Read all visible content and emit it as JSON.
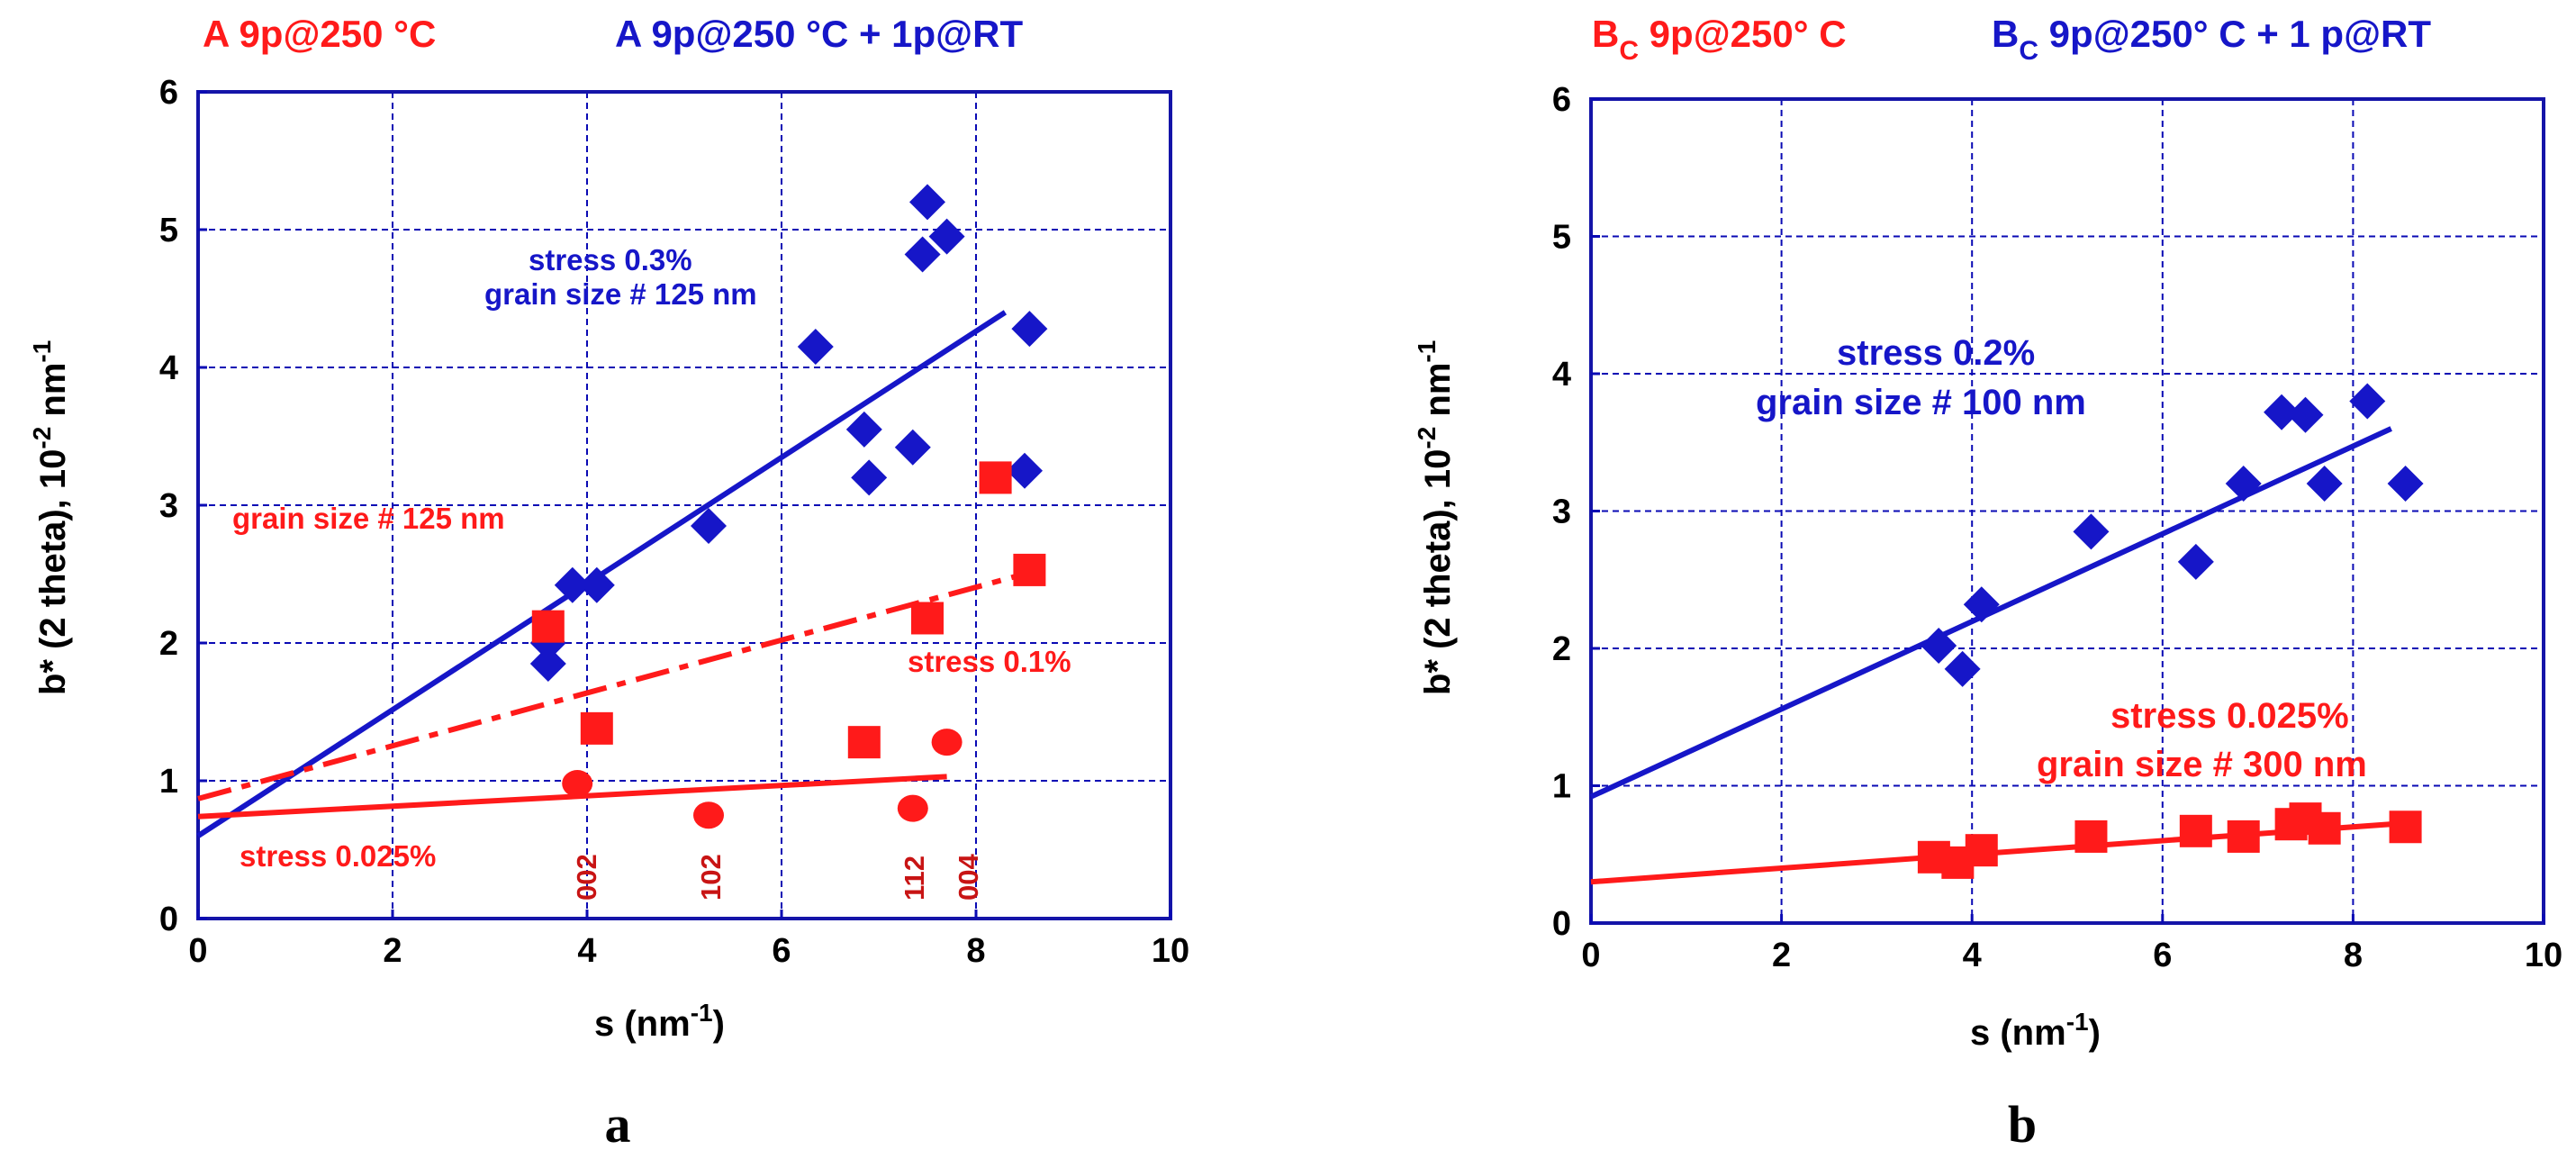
{
  "colors": {
    "red": "#ff1a1a",
    "blue": "#1616c8",
    "darkred": "#e00000",
    "grid": "#0a0ab4",
    "axis": "#000000"
  },
  "chart_data": [
    {
      "type": "scatter",
      "panel_label": "a",
      "legend_red": "A 9p@250 °C",
      "legend_blue": "A 9p@250 °C + 1p@RT",
      "xlabel": "s (nm",
      "xlabel_sup": "-1",
      "xlabel_end": ")",
      "ylabel": "b* (2 theta), 10",
      "ylabel_sup1": "-2",
      "ylabel_mid": " nm",
      "ylabel_sup2": "-1",
      "xlim": [
        0,
        10
      ],
      "ylim": [
        0,
        6
      ],
      "xticks": [
        "0",
        "2",
        "4",
        "6",
        "8",
        "10"
      ],
      "yticks": [
        "0",
        "1",
        "2",
        "3",
        "4",
        "5",
        "6"
      ],
      "grid": true,
      "series": [
        {
          "name": "A 9p@250 °C + 1p@RT",
          "marker": "diamond",
          "color": "blue",
          "x": [
            3.6,
            3.6,
            3.85,
            4.1,
            5.25,
            6.35,
            6.85,
            6.9,
            7.35,
            7.45,
            7.5,
            7.7,
            8.5,
            8.55
          ],
          "y": [
            1.85,
            2.0,
            2.42,
            2.42,
            2.85,
            4.15,
            3.55,
            3.2,
            3.42,
            4.82,
            5.2,
            4.95,
            3.25,
            4.28
          ]
        },
        {
          "name": "A 9p@250 °C squares",
          "marker": "square",
          "color": "red",
          "x": [
            3.6,
            4.1,
            6.85,
            7.5,
            8.2,
            8.55
          ],
          "y": [
            2.12,
            1.38,
            1.28,
            2.18,
            3.2,
            2.53
          ]
        },
        {
          "name": "A 9p@250 °C circles",
          "marker": "circle",
          "color": "red",
          "x": [
            3.9,
            5.25,
            7.35,
            7.7
          ],
          "y": [
            0.98,
            0.75,
            0.8,
            1.28
          ]
        }
      ],
      "lines": [
        {
          "color": "blue",
          "style": "solid",
          "x": [
            0,
            8.3
          ],
          "y": [
            0.6,
            4.4
          ]
        },
        {
          "color": "red",
          "style": "dashdot",
          "x": [
            0,
            8.6
          ],
          "y": [
            0.87,
            2.52
          ]
        },
        {
          "color": "red",
          "style": "solid",
          "x": [
            0,
            7.7
          ],
          "y": [
            0.74,
            1.03
          ]
        }
      ],
      "annotations": [
        {
          "text": "stress  0.3%",
          "color": "blue",
          "x": 3.4,
          "y": 4.78
        },
        {
          "text": "grain size  # 125 nm",
          "color": "blue",
          "x": 2.95,
          "y": 4.45
        },
        {
          "text": "grain size  # 125 nm",
          "color": "red",
          "x": 0.3,
          "y": 2.9
        },
        {
          "text": "stress  0.1%",
          "color": "red",
          "x": 7.3,
          "y": 1.8
        },
        {
          "text": "stress  0.025%",
          "color": "red",
          "x": 0.4,
          "y": 0.42
        }
      ],
      "reflections": [
        {
          "text": "002",
          "x": 3.95
        },
        {
          "text": "102",
          "x": 5.2
        },
        {
          "text": "112",
          "x": 7.45
        },
        {
          "text": "004",
          "x": 7.95
        }
      ]
    },
    {
      "type": "scatter",
      "panel_label": "b",
      "legend_red": "B",
      "legend_red_sub": "C",
      "legend_red_rest": " 9p@250° C",
      "legend_blue": "B",
      "legend_blue_sub": "C",
      "legend_blue_rest": " 9p@250° C + 1 p@RT",
      "xlabel": "s (nm",
      "xlabel_sup": "-1",
      "xlabel_end": ")",
      "ylabel": "b* (2 theta), 10",
      "ylabel_sup1": "-2",
      "ylabel_mid": " nm",
      "ylabel_sup2": "-1",
      "xlim": [
        0,
        10
      ],
      "ylim": [
        0,
        6
      ],
      "xticks": [
        "0",
        "2",
        "4",
        "6",
        "8",
        "10"
      ],
      "yticks": [
        "0",
        "1",
        "2",
        "3",
        "4",
        "5",
        "6"
      ],
      "grid": true,
      "series": [
        {
          "name": "BC 9p@250° C + 1 p@RT",
          "marker": "diamond",
          "color": "blue",
          "x": [
            3.65,
            3.9,
            4.1,
            5.25,
            6.35,
            6.85,
            7.25,
            7.5,
            7.7,
            8.15,
            8.55
          ],
          "y": [
            2.02,
            1.85,
            2.32,
            2.85,
            2.63,
            3.2,
            3.72,
            3.7,
            3.2,
            3.8,
            3.2
          ]
        },
        {
          "name": "BC 9p@250° C",
          "marker": "square",
          "color": "red",
          "x": [
            3.6,
            3.85,
            4.1,
            5.25,
            6.35,
            6.85,
            7.35,
            7.5,
            7.7,
            8.55
          ],
          "y": [
            0.48,
            0.44,
            0.53,
            0.63,
            0.67,
            0.63,
            0.72,
            0.76,
            0.69,
            0.7
          ]
        }
      ],
      "lines": [
        {
          "color": "blue",
          "style": "solid",
          "x": [
            0,
            8.4
          ],
          "y": [
            0.92,
            3.6
          ]
        },
        {
          "color": "red",
          "style": "solid",
          "x": [
            0,
            8.6
          ],
          "y": [
            0.3,
            0.73
          ]
        }
      ],
      "annotations": [
        {
          "text": "stress  0.2%",
          "color": "blue",
          "x": 2.55,
          "y": 4.1
        },
        {
          "text": "grain size  # 100 nm",
          "color": "blue",
          "x": 1.75,
          "y": 3.75
        },
        {
          "text": "stress  0.025%",
          "color": "red",
          "x": 5.55,
          "y": 1.42
        },
        {
          "text": "grain size  # 300 nm",
          "color": "red",
          "x": 4.7,
          "y": 1.07
        }
      ]
    }
  ]
}
